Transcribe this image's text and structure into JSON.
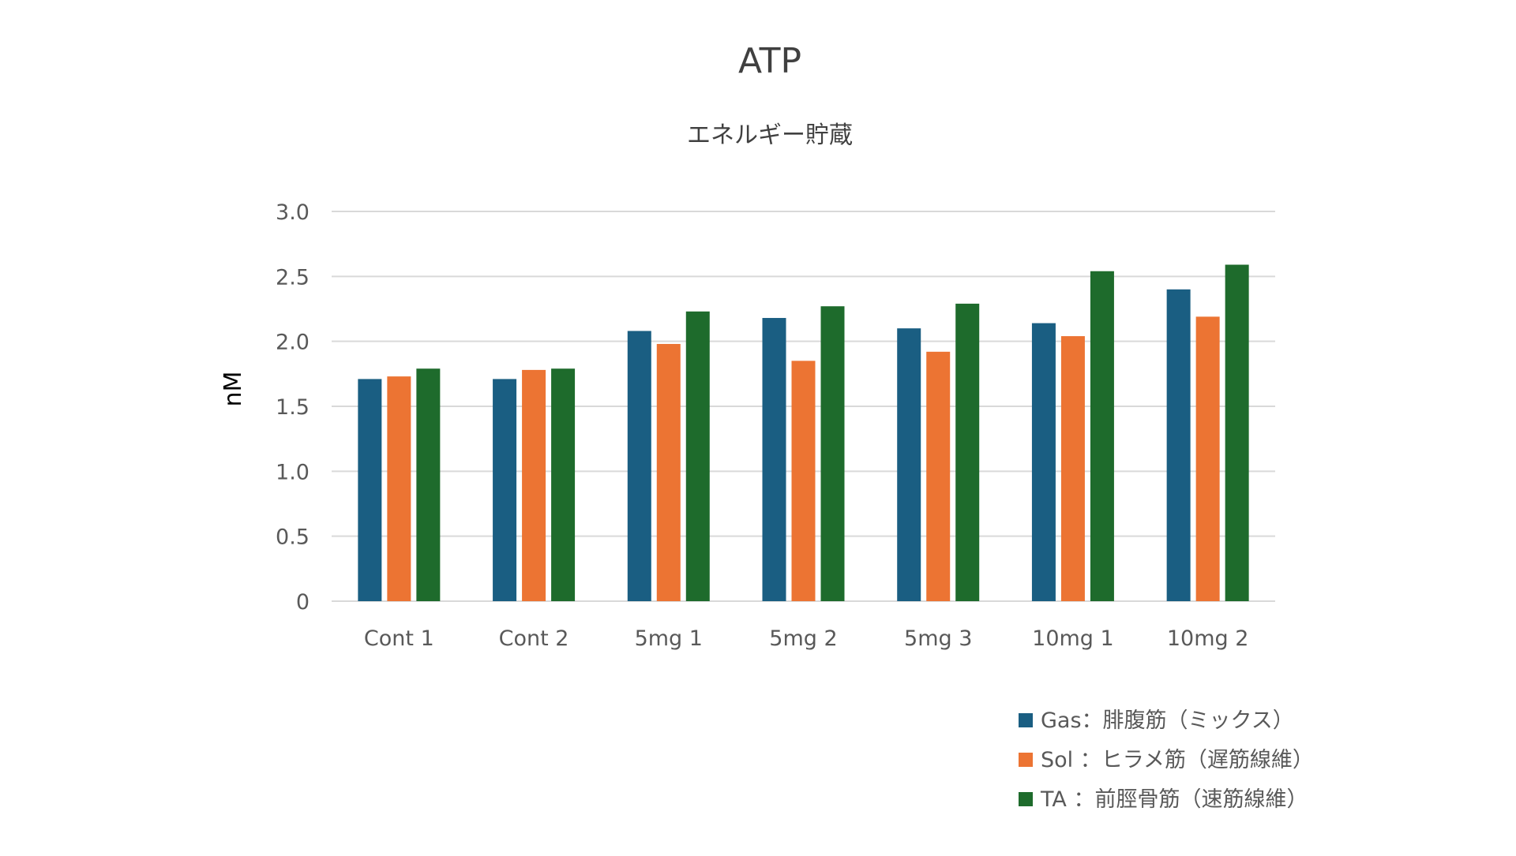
{
  "chart_data": {
    "type": "bar",
    "title": "ATP",
    "subtitle": "エネルギー貯蔵",
    "xlabel": "",
    "ylabel": "nM",
    "ylim": [
      0,
      3.0
    ],
    "yticks": [
      "0",
      "0.5",
      "1.0",
      "1.5",
      "2.0",
      "2.5",
      "3.0"
    ],
    "grid": true,
    "legend_position": "bottom-right",
    "categories": [
      "Cont 1",
      "Cont 2",
      "5mg 1",
      "5mg 2",
      "5mg 3",
      "10mg 1",
      "10mg 2"
    ],
    "series": [
      {
        "name": "Gas：腓腹筋（ミックス）",
        "color": "#1a5e82",
        "values": [
          1.71,
          1.71,
          2.08,
          2.18,
          2.1,
          2.14,
          2.4
        ]
      },
      {
        "name": "Sol ：ヒラメ筋（遅筋線維）",
        "color": "#ec7433",
        "values": [
          1.73,
          1.78,
          1.98,
          1.85,
          1.92,
          2.04,
          2.19
        ]
      },
      {
        "name": "TA ：前脛骨筋（速筋線維）",
        "color": "#1e6b2c",
        "values": [
          1.79,
          1.79,
          2.23,
          2.27,
          2.29,
          2.54,
          2.59
        ]
      }
    ]
  }
}
